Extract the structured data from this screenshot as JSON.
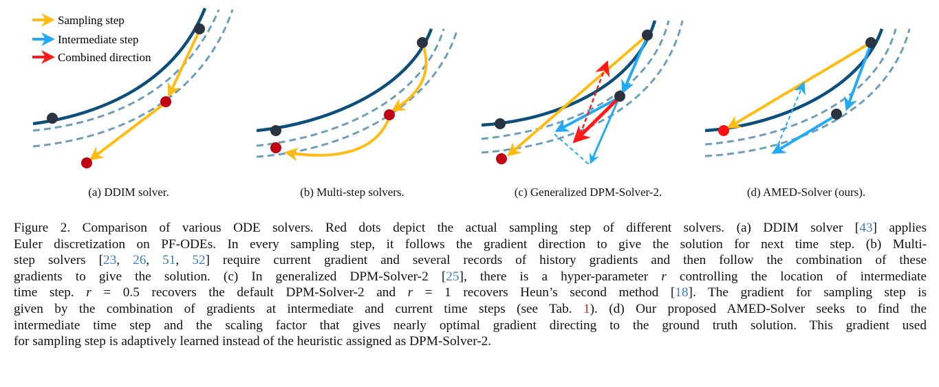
{
  "colors": {
    "curve": "#0b4f7a",
    "dashed": "#6b9dbd",
    "sampling": "#ffbb11",
    "intermediate": "#22aaf5",
    "combined": "#ff1a1a",
    "red_dot": "#c00010",
    "dark_dot": "#2a3440",
    "citation": "#3a7dc4"
  },
  "legend": [
    {
      "label": "Sampling step",
      "color": "#ffbb11"
    },
    {
      "label": "Intermediate step",
      "color": "#22aaf5"
    },
    {
      "label": "Combined direction",
      "color": "#ff1a1a"
    }
  ],
  "subfigures": [
    {
      "caption": "(a) DDIM solver."
    },
    {
      "caption": "(b) Multi-step solvers."
    },
    {
      "caption": "(c) Generalized DPM-Solver-2."
    },
    {
      "caption": "(d) AMED-Solver (ours)."
    }
  ],
  "caption_lines": [
    [
      {
        "t": "Figure 2. Comparison of various ODE solvers. Red dots depict the actual sampling step of different solvers. (a) DDIM solver ["
      },
      {
        "t": "43",
        "k": "cite"
      },
      {
        "t": "] applies"
      }
    ],
    [
      {
        "t": "Euler discretization on PF-ODEs. In every sampling step, it follows the gradient direction to give the solution for next time step. (b) Multi-"
      }
    ],
    [
      {
        "t": "step solvers ["
      },
      {
        "t": "23",
        "k": "cite"
      },
      {
        "t": ", "
      },
      {
        "t": "26",
        "k": "cite"
      },
      {
        "t": ", "
      },
      {
        "t": "51",
        "k": "cite"
      },
      {
        "t": ", "
      },
      {
        "t": "52",
        "k": "cite"
      },
      {
        "t": "] require current gradient and several records of history gradients and then follow the combination of these"
      }
    ],
    [
      {
        "t": "gradients to give the solution. (c) In generalized DPM-Solver-2 ["
      },
      {
        "t": "25",
        "k": "cite"
      },
      {
        "t": "], there is a hyper-parameter "
      },
      {
        "t": "r",
        "k": "math"
      },
      {
        "t": " controlling the location of intermediate"
      }
    ],
    [
      {
        "t": "time step. "
      },
      {
        "t": "r",
        "k": "math"
      },
      {
        "t": " = 0.5 recovers the default DPM-Solver-2 and "
      },
      {
        "t": "r",
        "k": "math"
      },
      {
        "t": " = 1 recovers Heun’s second method ["
      },
      {
        "t": "18",
        "k": "cite"
      },
      {
        "t": "]. The gradient for sampling step is"
      }
    ],
    [
      {
        "t": "given by the combination of gradients at intermediate and current time steps (see Tab. "
      },
      {
        "t": "1",
        "k": "tref"
      },
      {
        "t": "). (d) Our proposed AMED-Solver seeks to find the"
      }
    ],
    [
      {
        "t": "intermediate time step and the scaling factor that gives nearly optimal gradient directing to the ground truth solution. This gradient used"
      }
    ],
    [
      {
        "t": "for sampling step is adaptively learned instead of the heuristic assigned as DPM-Solver-2."
      }
    ]
  ]
}
